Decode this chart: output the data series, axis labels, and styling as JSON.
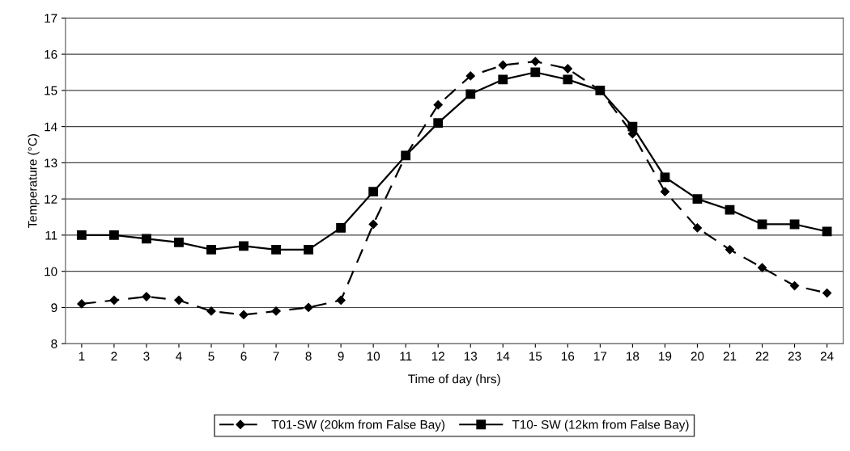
{
  "chart_data": {
    "type": "line",
    "xlabel": "Time of day (hrs)",
    "ylabel": "Temperature (°C)",
    "categories": [
      "1",
      "2",
      "3",
      "4",
      "5",
      "6",
      "7",
      "8",
      "9",
      "10",
      "11",
      "12",
      "13",
      "14",
      "15",
      "16",
      "17",
      "18",
      "19",
      "20",
      "21",
      "22",
      "23",
      "24"
    ],
    "series": [
      {
        "name": "T01-SW (20km from False Bay)",
        "color": "#000000",
        "marker": "diamond",
        "line_style": "dashed",
        "values": [
          9.1,
          9.2,
          9.3,
          9.2,
          8.9,
          8.8,
          8.9,
          9.0,
          9.2,
          11.3,
          13.2,
          14.6,
          15.4,
          15.7,
          15.8,
          15.6,
          15.0,
          13.8,
          12.2,
          11.2,
          10.6,
          10.1,
          9.6,
          9.4
        ]
      },
      {
        "name": "T10- SW (12km from False Bay)",
        "color": "#000000",
        "marker": "square",
        "line_style": "solid",
        "values": [
          11.0,
          11.0,
          10.9,
          10.8,
          10.6,
          10.7,
          10.6,
          10.6,
          11.2,
          12.2,
          13.2,
          14.1,
          14.9,
          15.3,
          15.5,
          15.3,
          15.0,
          14.0,
          12.6,
          12.0,
          11.7,
          11.3,
          11.3,
          11.1
        ]
      }
    ],
    "ylim": [
      8,
      17
    ],
    "yticks": [
      8,
      9,
      10,
      11,
      12,
      13,
      14,
      15,
      16,
      17
    ],
    "grid": "y",
    "legend": "bottom"
  }
}
